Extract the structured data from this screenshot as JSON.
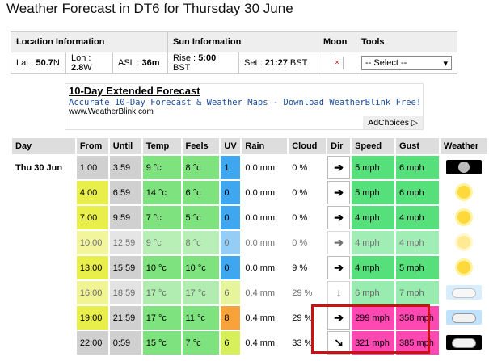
{
  "page": {
    "title": "Weather Forecast in DT6 for Thursday 30 June"
  },
  "info": {
    "headers": [
      "Location Information",
      "Sun Information",
      "Moon",
      "Tools"
    ],
    "location": {
      "lat_label": "Lat :",
      "lat": "50.7",
      "lat_dir": "N",
      "lon_label": "Lon :",
      "lon": "2.8",
      "lon_dir": "W",
      "asl_label": "ASL :",
      "asl": "36m"
    },
    "sun": {
      "rise_label": "Rise :",
      "rise": "5:00",
      "rise_tz": "BST",
      "set_label": "Set :",
      "set": "21:27",
      "set_tz": "BST"
    },
    "moon_icon": "broken-image-icon",
    "tools": {
      "select_value": "-- Select --"
    }
  },
  "ad": {
    "title": "10-Day Extended Forecast",
    "description": "Accurate 10-Day Forecast & Weather Maps - Download WeatherBlink Free!",
    "url": "www.WeatherBlink.com",
    "adchoices": "AdChoices"
  },
  "forecast": {
    "columns": [
      "Day",
      "From",
      "Until",
      "Temp",
      "Feels",
      "UV",
      "Rain",
      "Cloud",
      "Dir",
      "Speed",
      "Gust",
      "Weather"
    ],
    "day": "Thu 30 Jun",
    "rows": [
      {
        "from": "1:00",
        "until": "3:59",
        "temp": "9 °c",
        "feels": "8 °c",
        "uv": "1",
        "rain": "0.0 mm",
        "cloud": "0 %",
        "dir": "➔",
        "speed": "5 mph",
        "gust": "6 mph",
        "weather": "clear-night"
      },
      {
        "from": "4:00",
        "until": "6:59",
        "temp": "14 °c",
        "feels": "6 °c",
        "uv": "0",
        "rain": "0.0 mm",
        "cloud": "0 %",
        "dir": "➔",
        "speed": "5 mph",
        "gust": "6 mph",
        "weather": "sunny"
      },
      {
        "from": "7:00",
        "until": "9:59",
        "temp": "7 °c",
        "feels": "5 °c",
        "uv": "0",
        "rain": "0.0 mm",
        "cloud": "0 %",
        "dir": "➔",
        "speed": "4 mph",
        "gust": "4 mph",
        "weather": "sunny"
      },
      {
        "from": "10:00",
        "until": "12:59",
        "temp": "9 °c",
        "feels": "8 °c",
        "uv": "0",
        "rain": "0.0 mm",
        "cloud": "0 %",
        "dir": "➔",
        "speed": "4 mph",
        "gust": "4 mph",
        "weather": "sunny"
      },
      {
        "from": "13:00",
        "until": "15:59",
        "temp": "10 °c",
        "feels": "10 °c",
        "uv": "0",
        "rain": "0.0 mm",
        "cloud": "9 %",
        "dir": "➔",
        "speed": "4 mph",
        "gust": "5 mph",
        "weather": "sunny"
      },
      {
        "from": "16:00",
        "until": "18:59",
        "temp": "17 °c",
        "feels": "17 °c",
        "uv": "6",
        "rain": "0.4 mm",
        "cloud": "29 %",
        "dir": "↓",
        "speed": "6 mph",
        "gust": "7 mph",
        "weather": "partly-cloudy"
      },
      {
        "from": "19:00",
        "until": "21:59",
        "temp": "17 °c",
        "feels": "11 °c",
        "uv": "8",
        "rain": "0.4 mm",
        "cloud": "29 %",
        "dir": "➔",
        "speed": "299 mph",
        "gust": "358 mph",
        "weather": "partly-cloudy"
      },
      {
        "from": "22:00",
        "until": "0:59",
        "temp": "15 °c",
        "feels": "7 °c",
        "uv": "6",
        "rain": "0.4 mm",
        "cloud": "33 %",
        "dir": "↘",
        "speed": "321 mph",
        "gust": "385 mph",
        "weather": "cloudy-night"
      }
    ]
  },
  "colors": {
    "temp_green": "#7ee27e",
    "temp_yellow": "#e8ee4a",
    "uv_blue": "#3ea7ef",
    "uv_yellow": "#d6ef5a",
    "uv_orange": "#f7a23a",
    "speed_green": "#55e07c",
    "speed_pink": "#ff48b2",
    "grey": "#d0d0d0",
    "highlight_red": "#cc1111"
  }
}
